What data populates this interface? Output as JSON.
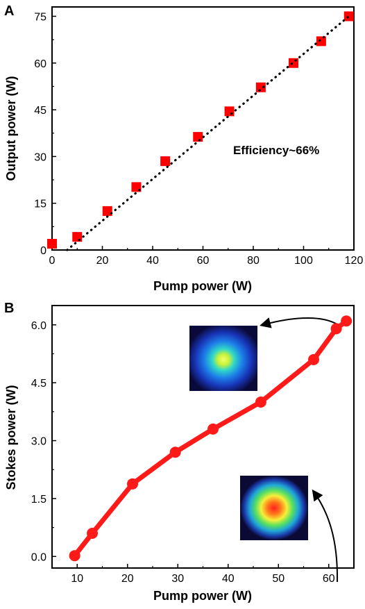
{
  "chart_data": [
    {
      "panel_label": "A",
      "type": "scatter",
      "xlabel": "Pump power (W)",
      "ylabel": "Output power (W)",
      "xlim": [
        0,
        120
      ],
      "ylim": [
        0,
        78
      ],
      "xticks": [
        0,
        20,
        40,
        60,
        80,
        100,
        120
      ],
      "yticks": [
        0,
        15,
        30,
        45,
        60,
        75
      ],
      "annotation": "Efficiency~66%",
      "series": [
        {
          "marker": "square",
          "color": "#ff0000",
          "x": [
            0,
            10,
            22,
            33.5,
            45,
            58,
            70.5,
            83,
            96,
            107,
            118
          ],
          "y": [
            2,
            4.2,
            12.5,
            20.2,
            28.5,
            36.3,
            44.5,
            52.2,
            60,
            67,
            75
          ]
        }
      ],
      "fit_line": {
        "style": "dotted",
        "color": "#000000",
        "x": [
          6,
          118
        ],
        "y": [
          0,
          75
        ]
      }
    },
    {
      "panel_label": "B",
      "type": "line",
      "xlabel": "Pump power (W)",
      "ylabel": "Stokes power (W)",
      "xlim": [
        5,
        65
      ],
      "ylim": [
        -0.3,
        6.5
      ],
      "xticks": [
        10,
        20,
        30,
        40,
        50,
        60
      ],
      "yticks": [
        0.0,
        1.5,
        3.0,
        4.5,
        6.0
      ],
      "ytick_labels": [
        "0.0",
        "1.5",
        "3.0",
        "4.5",
        "6.0"
      ],
      "series": [
        {
          "marker": "circle",
          "color": "#ff1a1a",
          "x": [
            9.5,
            13,
            21,
            29.5,
            37,
            46.5,
            57,
            61.5,
            63.5
          ],
          "y": [
            0.02,
            0.6,
            1.88,
            2.7,
            3.3,
            4.0,
            5.1,
            5.9,
            6.1
          ]
        }
      ]
    }
  ],
  "insets": [
    {
      "name": "beam-profile-high-power-icon"
    },
    {
      "name": "beam-profile-low-power-icon"
    }
  ]
}
